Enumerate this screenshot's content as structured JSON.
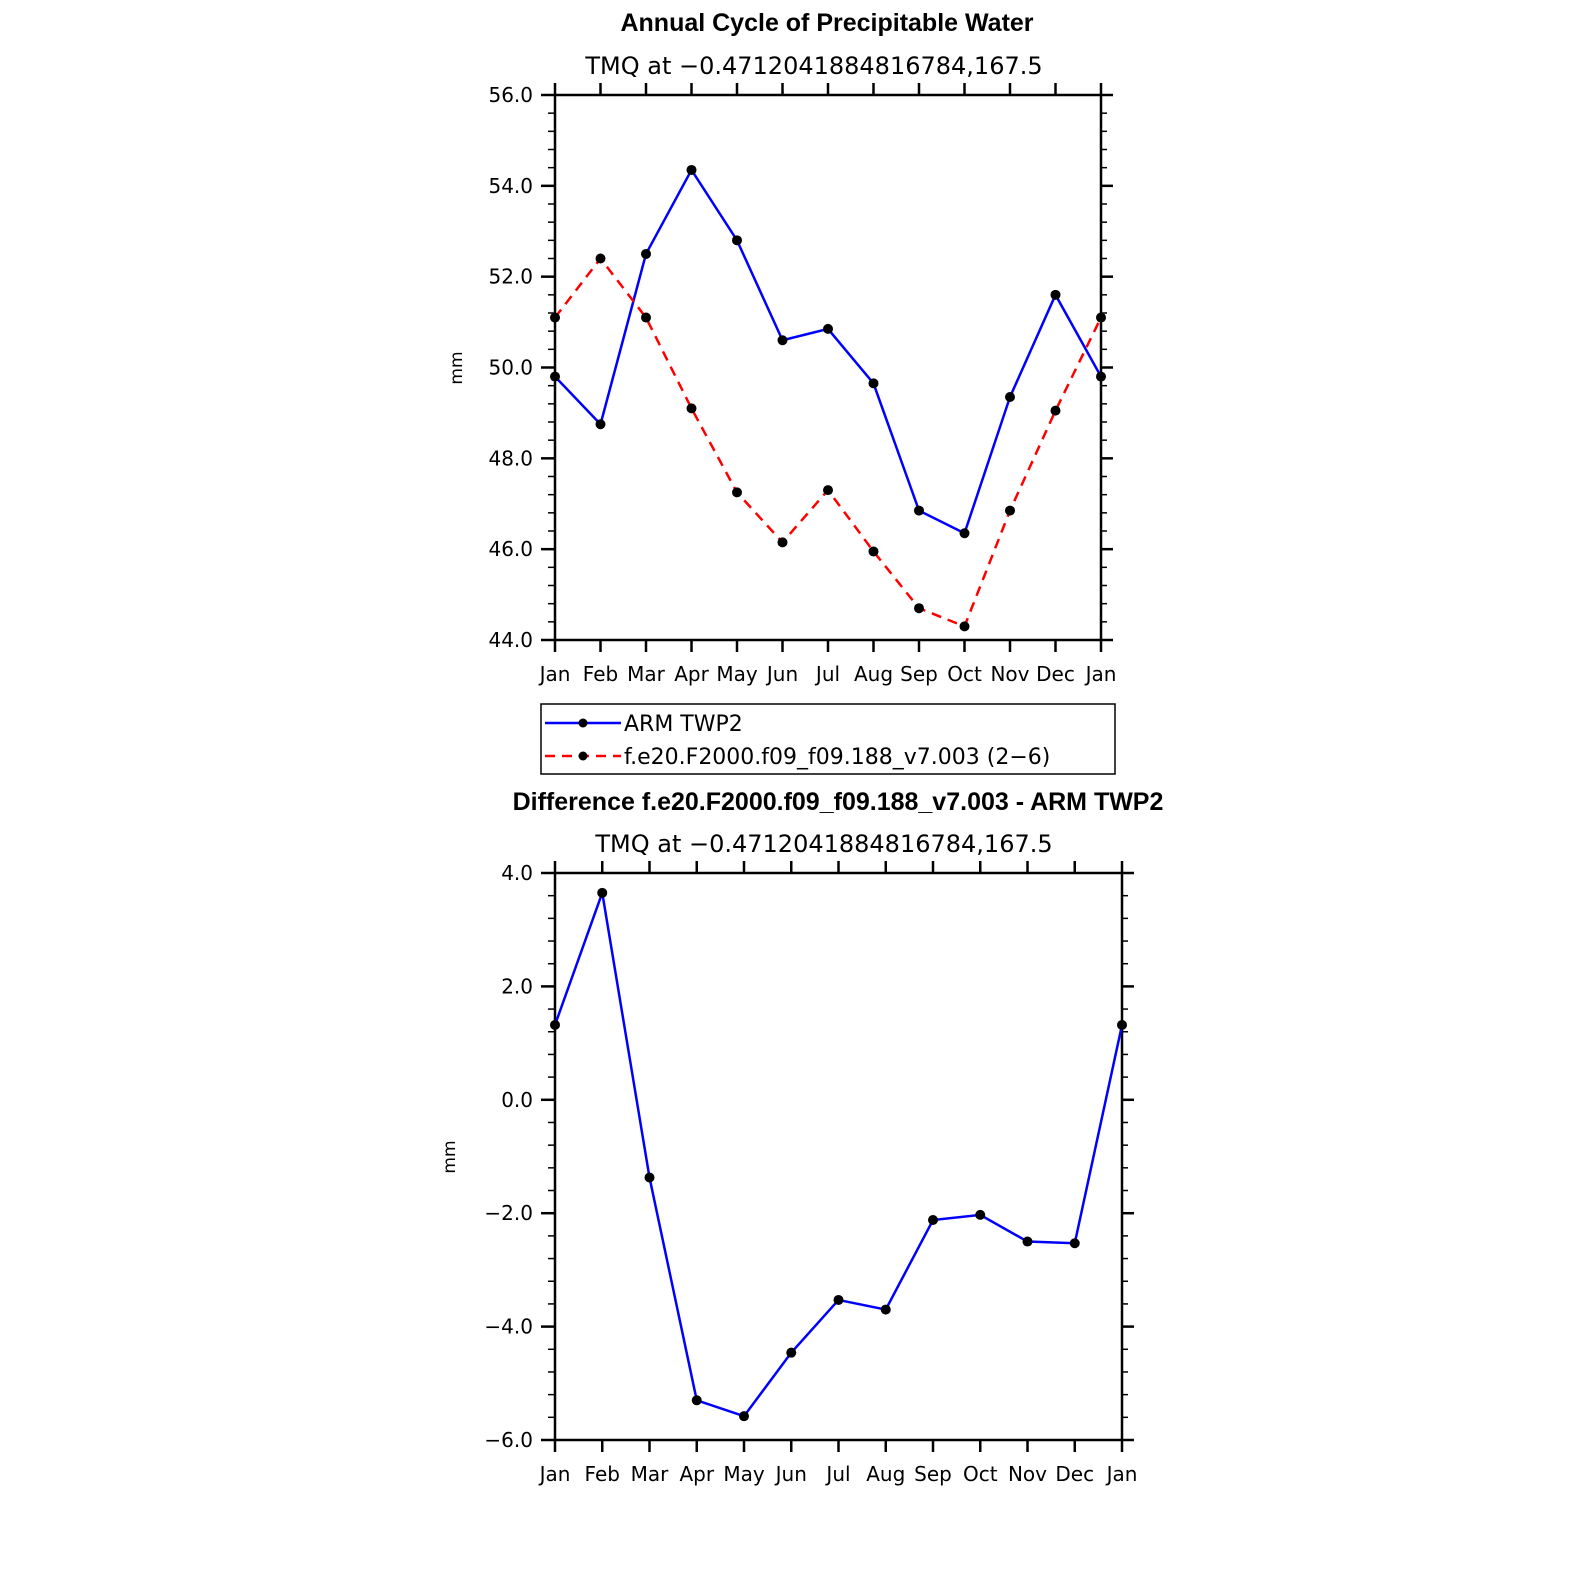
{
  "chart_data": [
    {
      "type": "line",
      "title": "Annual Cycle of Precipitable Water",
      "subtitle": "TMQ at −0.4712041884816784,167.5",
      "ylabel": "mm",
      "ylim": [
        44,
        56
      ],
      "yticks": [
        "44.0",
        "46.0",
        "48.0",
        "50.0",
        "52.0",
        "54.0",
        "56.0"
      ],
      "categories": [
        "Jan",
        "Feb",
        "Mar",
        "Apr",
        "May",
        "Jun",
        "Jul",
        "Aug",
        "Sep",
        "Oct",
        "Nov",
        "Dec",
        "Jan"
      ],
      "series": [
        {
          "name": "ARM TWP2",
          "color": "#0000ff",
          "dash": "solid",
          "values": [
            49.8,
            48.75,
            52.5,
            54.35,
            52.8,
            50.6,
            50.85,
            49.65,
            46.85,
            46.35,
            49.35,
            51.6,
            49.8
          ]
        },
        {
          "name": "f.e20.F2000.f09_f09.188_v7.003 (2−6)",
          "color": "#ff0000",
          "dash": "dashed",
          "values": [
            51.1,
            52.4,
            51.1,
            49.1,
            47.25,
            46.15,
            47.3,
            45.95,
            44.7,
            44.3,
            46.85,
            49.05,
            51.1
          ]
        }
      ],
      "legend_position": "below"
    },
    {
      "type": "line",
      "title": "Difference f.e20.F2000.f09_f09.188_v7.003 - ARM TWP2",
      "subtitle": "TMQ at −0.4712041884816784,167.5",
      "ylabel": "mm",
      "ylim": [
        -6,
        4
      ],
      "yticks": [
        "−6.0",
        "−4.0",
        "−2.0",
        "0.0",
        "2.0",
        "4.0"
      ],
      "categories": [
        "Jan",
        "Feb",
        "Mar",
        "Apr",
        "May",
        "Jun",
        "Jul",
        "Aug",
        "Sep",
        "Oct",
        "Nov",
        "Dec",
        "Jan"
      ],
      "series": [
        {
          "color": "#0000ff",
          "dash": "solid",
          "values": [
            1.32,
            3.65,
            -1.37,
            -5.3,
            -5.58,
            -4.46,
            -3.53,
            -3.7,
            -2.12,
            -2.03,
            -2.5,
            -2.53,
            1.32
          ]
        }
      ]
    }
  ]
}
